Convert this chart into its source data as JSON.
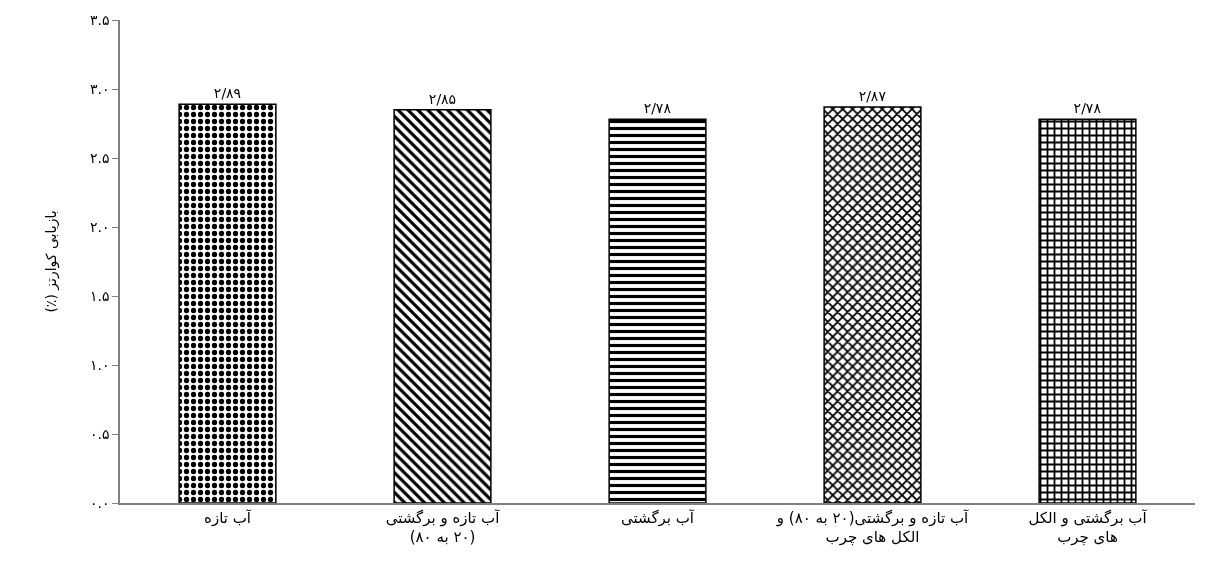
{
  "chart_data": {
    "type": "bar",
    "ylabel": "بازیابی کوارتز (٪)",
    "categories": [
      "آب تازه",
      "آب تازه و برگشتی\n(۲۰ به ۸۰)",
      "آب برگشتی",
      "آب تازه و برگشتی(۲۰ به ۸۰) و\nالکل های چرب",
      "آب برگشتی و الکل\nهای چرب"
    ],
    "values": [
      2.89,
      2.85,
      2.78,
      2.87,
      2.78
    ],
    "value_labels": [
      "۲/۸۹",
      "۲/۸۵",
      "۲/۷۸",
      "۲/۸۷",
      "۲/۷۸"
    ],
    "colors": [
      "#000000",
      "#000000",
      "#000000",
      "#000000",
      "#000000"
    ],
    "ylim": [
      0,
      3.5
    ],
    "yticks": [
      {
        "value": 0,
        "label": "۰.۰"
      },
      {
        "value": 0.5,
        "label": "۰.۵"
      },
      {
        "value": 1,
        "label": "۱.۰"
      },
      {
        "value": 1.5,
        "label": "۱.۵"
      },
      {
        "value": 2,
        "label": "۲.۰"
      },
      {
        "value": 2.5,
        "label": "۲.۵"
      },
      {
        "value": 3,
        "label": "۳.۰"
      },
      {
        "value": 3.5,
        "label": "۳.۵"
      }
    ],
    "grid": false,
    "legend": false
  }
}
